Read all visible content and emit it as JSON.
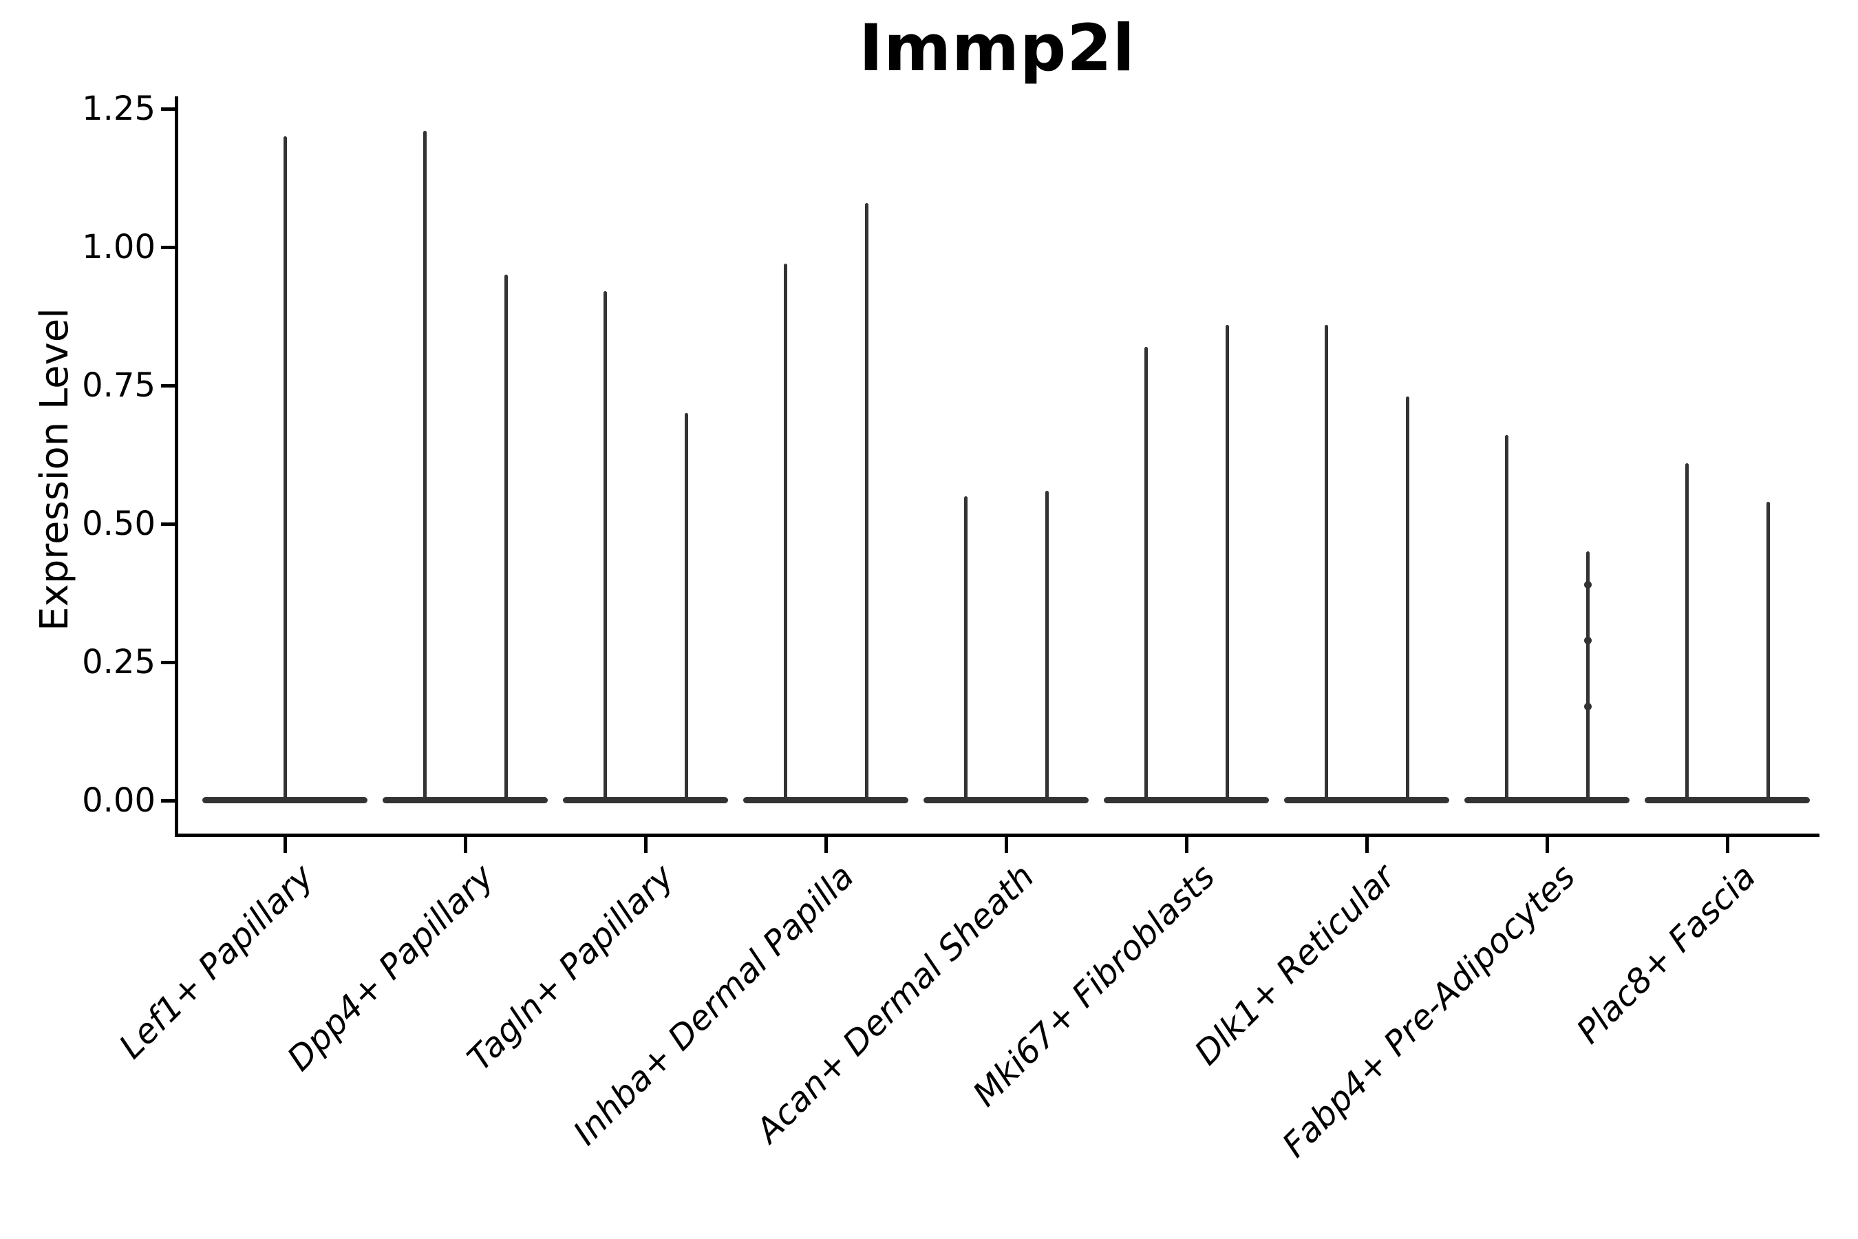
{
  "title": "Immp2l",
  "y_axis": {
    "label": "Expression Level",
    "tick_labels": [
      "0.00",
      "0.25",
      "0.50",
      "0.75",
      "1.00",
      "1.25"
    ]
  },
  "colors": {
    "violin": "#333333",
    "text": "#000000",
    "axis": "#000000",
    "background": "#ffffff"
  },
  "chart_data": {
    "type": "violin",
    "title": "Immp2l",
    "xlabel": "",
    "ylabel": "Expression Level",
    "ylim": [
      0,
      1.25
    ],
    "yticks": [
      0,
      0.25,
      0.5,
      0.75,
      1.0,
      1.25
    ],
    "grid": false,
    "legend": "none",
    "description": "Single-cell expression violin plot; every violin is a flat dense disc at 0 expression with thin spikes rising to the maximum expression of each group. First category has one full-width violin; all others have two side-by-side (dodged) violins.",
    "categories": [
      {
        "label": "Lef1+ Papillary",
        "violins": [
          {
            "position": "center",
            "zero_mass": true,
            "max": 1.2
          }
        ]
      },
      {
        "label": "Dpp4+ Papillary",
        "violins": [
          {
            "position": "left",
            "zero_mass": true,
            "max": 1.21
          },
          {
            "position": "right",
            "zero_mass": true,
            "max": 0.95
          }
        ]
      },
      {
        "label": "Tagln+ Papillary",
        "violins": [
          {
            "position": "left",
            "zero_mass": true,
            "max": 0.92
          },
          {
            "position": "right",
            "zero_mass": true,
            "max": 0.7
          }
        ]
      },
      {
        "label": "Inhba+ Dermal Papilla",
        "violins": [
          {
            "position": "left",
            "zero_mass": true,
            "max": 0.97
          },
          {
            "position": "right",
            "zero_mass": true,
            "max": 1.08
          }
        ]
      },
      {
        "label": "Acan+ Dermal Sheath",
        "violins": [
          {
            "position": "left",
            "zero_mass": true,
            "max": 0.55
          },
          {
            "position": "right",
            "zero_mass": true,
            "max": 0.56
          }
        ]
      },
      {
        "label": "Mki67+ Fibroblasts",
        "violins": [
          {
            "position": "left",
            "zero_mass": true,
            "max": 0.82
          },
          {
            "position": "right",
            "zero_mass": true,
            "max": 0.86
          }
        ]
      },
      {
        "label": "Dlk1+ Reticular",
        "violins": [
          {
            "position": "left",
            "zero_mass": true,
            "max": 0.86
          },
          {
            "position": "right",
            "zero_mass": true,
            "max": 0.73
          }
        ]
      },
      {
        "label": "Fabp4+ Pre-Adipocytes",
        "violins": [
          {
            "position": "left",
            "zero_mass": true,
            "max": 0.66
          },
          {
            "position": "right",
            "zero_mass": true,
            "max": 0.45,
            "bumps": [
              0.39,
              0.29,
              0.17
            ]
          }
        ]
      },
      {
        "label": "Plac8+ Fascia",
        "violins": [
          {
            "position": "left",
            "zero_mass": true,
            "max": 0.61
          },
          {
            "position": "right",
            "zero_mass": true,
            "max": 0.54
          }
        ]
      }
    ]
  }
}
